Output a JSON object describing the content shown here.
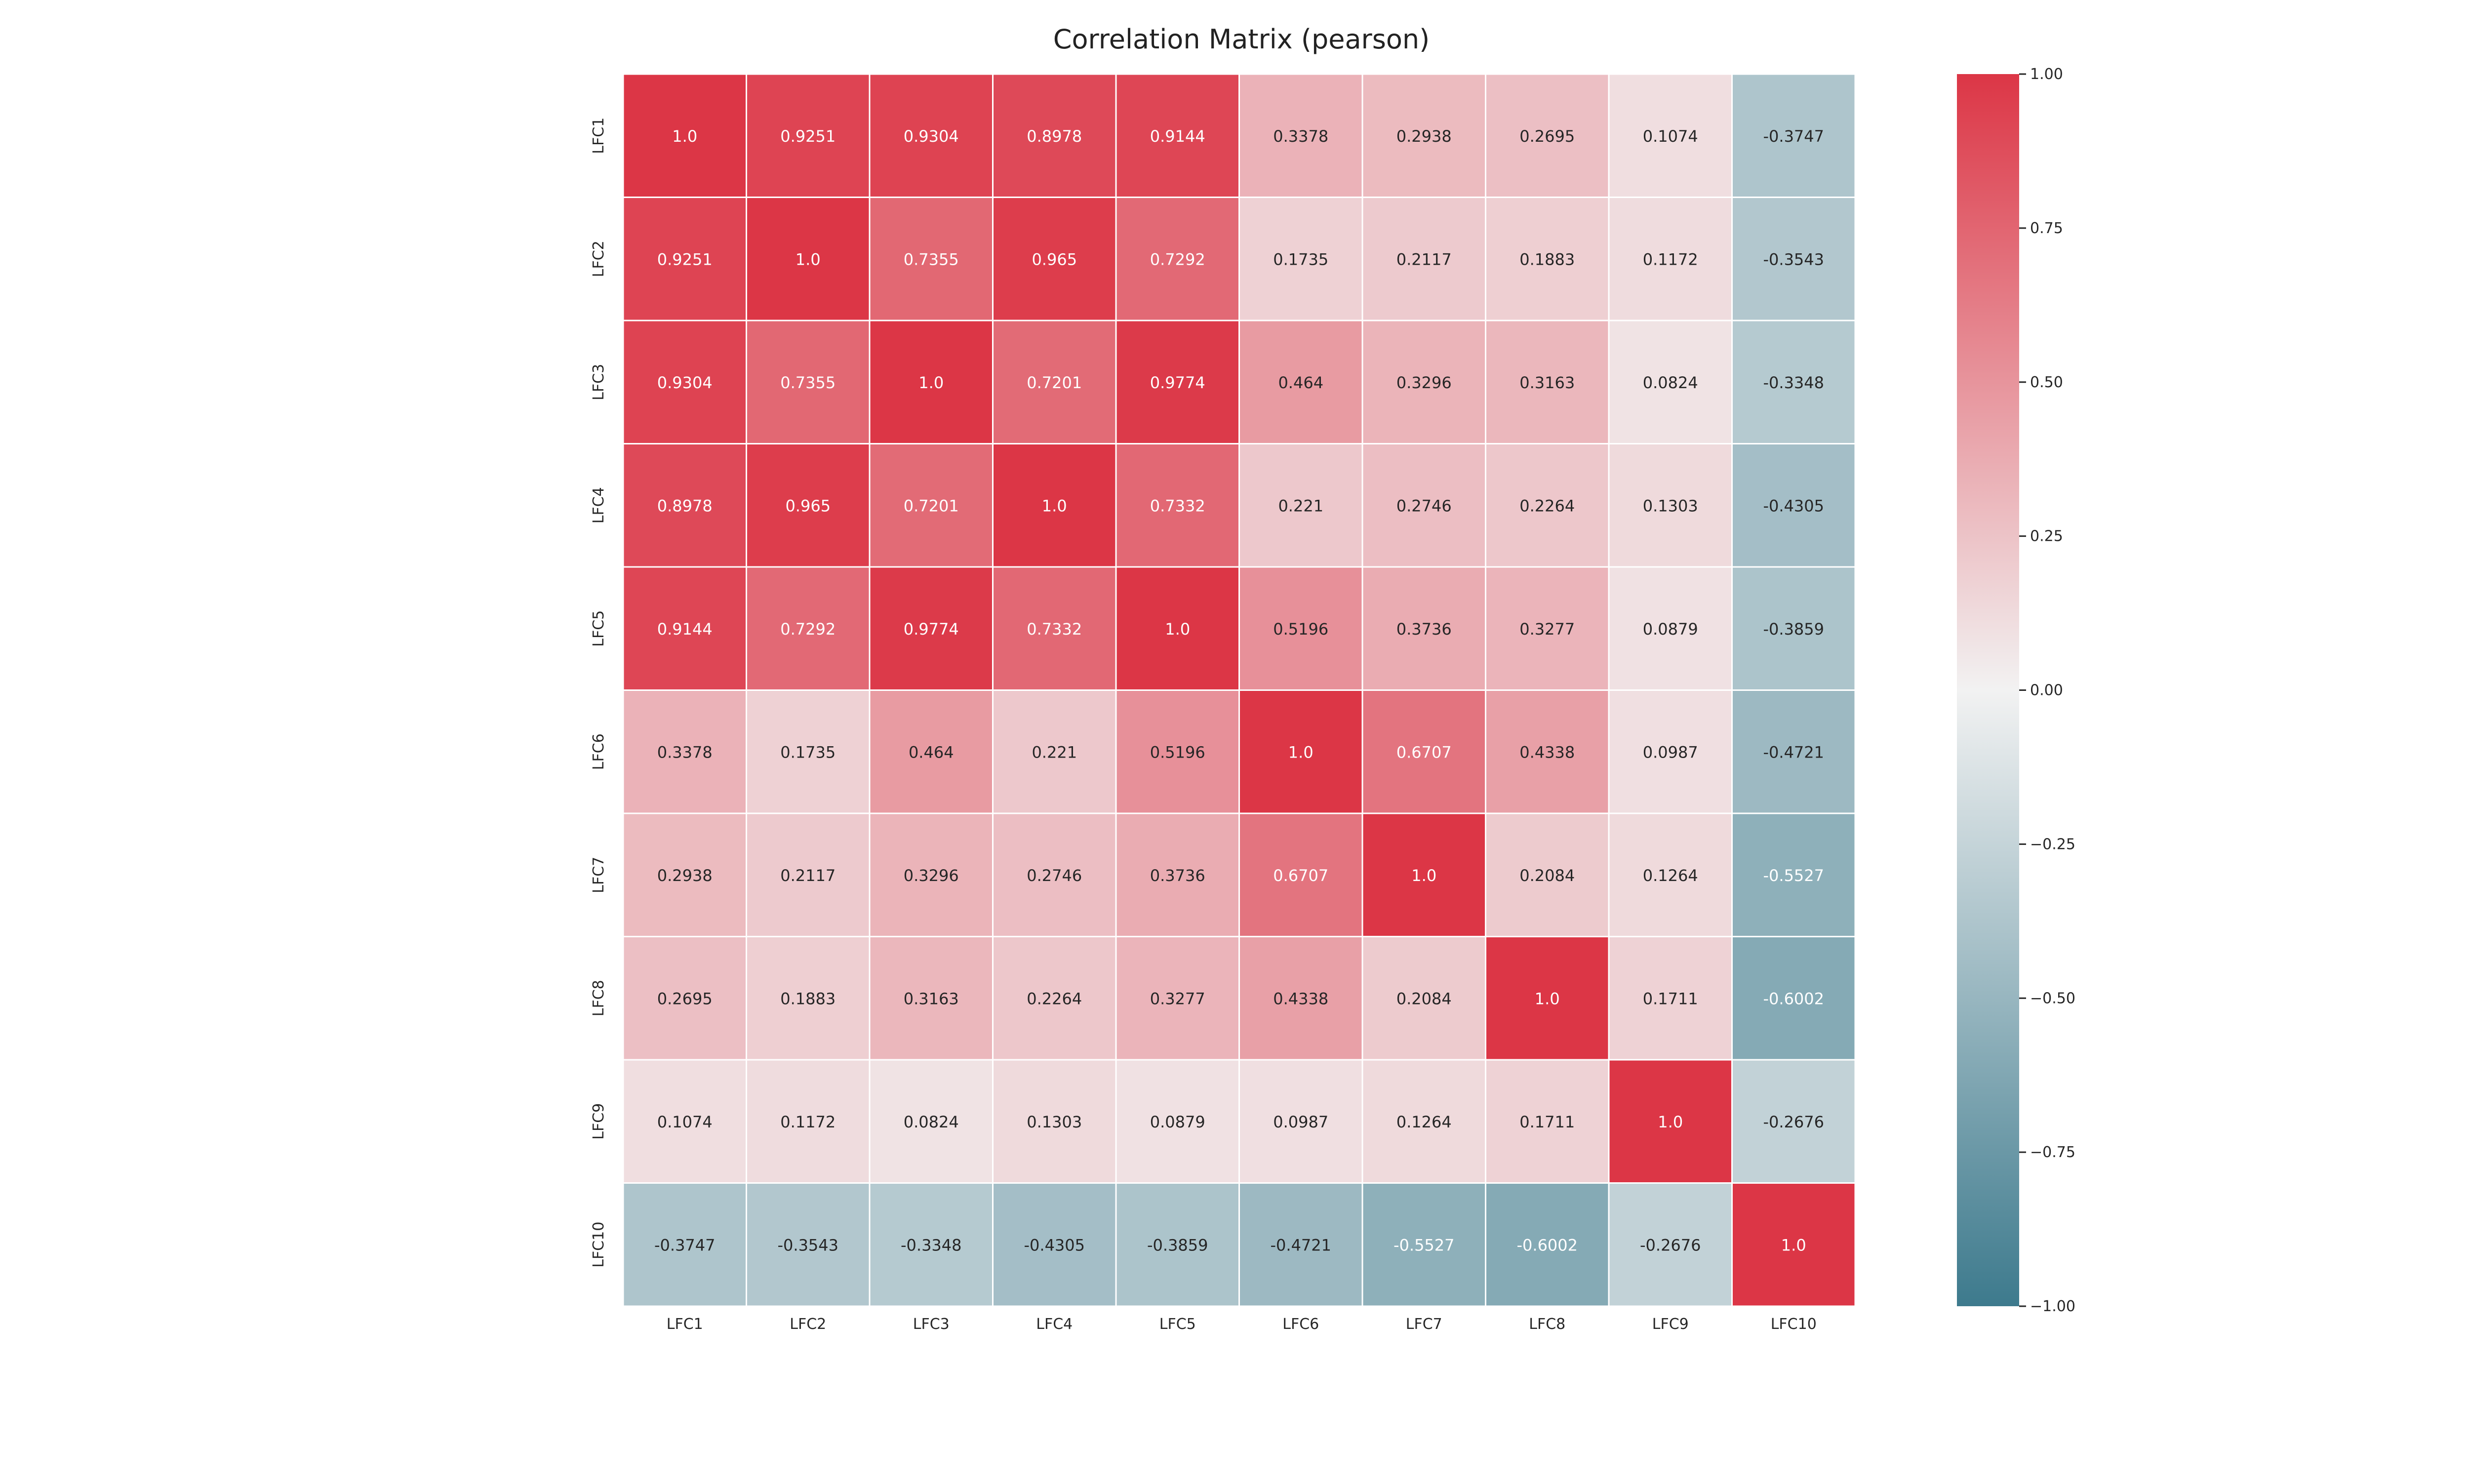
{
  "chart_data": {
    "type": "heatmap",
    "title": "Correlation Matrix (pearson)",
    "rows": [
      "LFC1",
      "LFC2",
      "LFC3",
      "LFC4",
      "LFC5",
      "LFC6",
      "LFC7",
      "LFC8",
      "LFC9",
      "LFC10"
    ],
    "cols": [
      "LFC1",
      "LFC2",
      "LFC3",
      "LFC4",
      "LFC5",
      "LFC6",
      "LFC7",
      "LFC8",
      "LFC9",
      "LFC10"
    ],
    "values": [
      [
        1.0,
        0.9251,
        0.9304,
        0.8978,
        0.9144,
        0.3378,
        0.2938,
        0.2695,
        0.1074,
        -0.3747
      ],
      [
        0.9251,
        1.0,
        0.7355,
        0.965,
        0.7292,
        0.1735,
        0.2117,
        0.1883,
        0.1172,
        -0.3543
      ],
      [
        0.9304,
        0.7355,
        1.0,
        0.7201,
        0.9774,
        0.464,
        0.3296,
        0.3163,
        0.0824,
        -0.3348
      ],
      [
        0.8978,
        0.965,
        0.7201,
        1.0,
        0.7332,
        0.221,
        0.2746,
        0.2264,
        0.1303,
        -0.4305
      ],
      [
        0.9144,
        0.7292,
        0.9774,
        0.7332,
        1.0,
        0.5196,
        0.3736,
        0.3277,
        0.0879,
        -0.3859
      ],
      [
        0.3378,
        0.1735,
        0.464,
        0.221,
        0.5196,
        1.0,
        0.6707,
        0.4338,
        0.0987,
        -0.4721
      ],
      [
        0.2938,
        0.2117,
        0.3296,
        0.2746,
        0.3736,
        0.6707,
        1.0,
        0.2084,
        0.1264,
        -0.5527
      ],
      [
        0.2695,
        0.1883,
        0.3163,
        0.2264,
        0.3277,
        0.4338,
        0.2084,
        1.0,
        0.1711,
        -0.6002
      ],
      [
        0.1074,
        0.1172,
        0.0824,
        0.1303,
        0.0879,
        0.0987,
        0.1264,
        0.1711,
        1.0,
        -0.2676
      ],
      [
        -0.3747,
        -0.3543,
        -0.3348,
        -0.4305,
        -0.3859,
        -0.4721,
        -0.5527,
        -0.6002,
        -0.2676,
        1.0
      ]
    ],
    "cell_labels": [
      [
        "1.0",
        "0.9251",
        "0.9304",
        "0.8978",
        "0.9144",
        "0.3378",
        "0.2938",
        "0.2695",
        "0.1074",
        "-0.3747"
      ],
      [
        "0.9251",
        "1.0",
        "0.7355",
        "0.965",
        "0.7292",
        "0.1735",
        "0.2117",
        "0.1883",
        "0.1172",
        "-0.3543"
      ],
      [
        "0.9304",
        "0.7355",
        "1.0",
        "0.7201",
        "0.9774",
        "0.464",
        "0.3296",
        "0.3163",
        "0.0824",
        "-0.3348"
      ],
      [
        "0.8978",
        "0.965",
        "0.7201",
        "1.0",
        "0.7332",
        "0.221",
        "0.2746",
        "0.2264",
        "0.1303",
        "-0.4305"
      ],
      [
        "0.9144",
        "0.7292",
        "0.9774",
        "0.7332",
        "1.0",
        "0.5196",
        "0.3736",
        "0.3277",
        "0.0879",
        "-0.3859"
      ],
      [
        "0.3378",
        "0.1735",
        "0.464",
        "0.221",
        "0.5196",
        "1.0",
        "0.6707",
        "0.4338",
        "0.0987",
        "-0.4721"
      ],
      [
        "0.2938",
        "0.2117",
        "0.3296",
        "0.2746",
        "0.3736",
        "0.6707",
        "1.0",
        "0.2084",
        "0.1264",
        "-0.5527"
      ],
      [
        "0.2695",
        "0.1883",
        "0.3163",
        "0.2264",
        "0.3277",
        "0.4338",
        "0.2084",
        "1.0",
        "0.1711",
        "-0.6002"
      ],
      [
        "0.1074",
        "0.1172",
        "0.0824",
        "0.1303",
        "0.0879",
        "0.0987",
        "0.1264",
        "0.1711",
        "1.0",
        "-0.2676"
      ],
      [
        "-0.3747",
        "-0.3543",
        "-0.3348",
        "-0.4305",
        "-0.3859",
        "-0.4721",
        "-0.5527",
        "-0.6002",
        "-0.2676",
        "1.0"
      ]
    ],
    "colorbar": {
      "range": [
        -1.0,
        1.0
      ],
      "ticks": [
        1.0,
        0.75,
        0.5,
        0.25,
        0.0,
        -0.25,
        -0.5,
        -0.75,
        -1.0
      ],
      "tick_labels": [
        "1.00",
        "0.75",
        "0.50",
        "0.25",
        "0.00",
        "−0.25",
        "−0.50",
        "−0.75",
        "−1.00"
      ],
      "colors": {
        "negative_end": "#3d7a8d",
        "center": "#f2f2f2",
        "positive_end": "#dc3646"
      }
    },
    "grid": false,
    "cell_border_color": "#ffffff"
  }
}
